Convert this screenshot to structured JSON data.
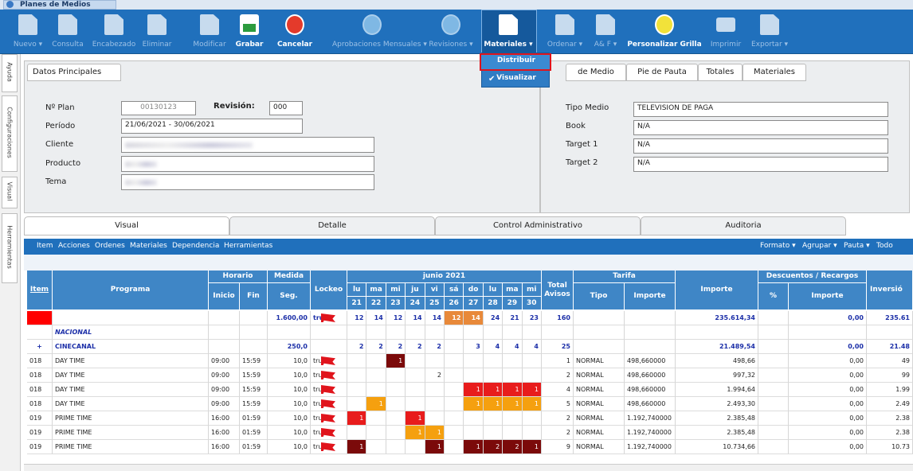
{
  "window": {
    "title": "Planes de Medios"
  },
  "toolbar": [
    {
      "label": "Nuevo ▾",
      "enabled": false
    },
    {
      "label": "Consulta",
      "enabled": false
    },
    {
      "label": "Encabezado",
      "enabled": false
    },
    {
      "label": "Eliminar",
      "enabled": false
    },
    {
      "label": "Modificar",
      "enabled": false
    },
    {
      "label": "Grabar",
      "enabled": true
    },
    {
      "label": "Cancelar",
      "enabled": true
    },
    {
      "label": "Aprobaciones Mensuales ▾",
      "enabled": false
    },
    {
      "label": "Revisiones ▾",
      "enabled": false
    },
    {
      "label": "Materiales ▾",
      "enabled": true,
      "active": true
    },
    {
      "label": "Ordenar ▾",
      "enabled": false
    },
    {
      "label": "A& F ▾",
      "enabled": false
    },
    {
      "label": "Personalizar Grilla",
      "enabled": true
    },
    {
      "label": "Imprimir",
      "enabled": false
    },
    {
      "label": "Exportar ▾",
      "enabled": false
    }
  ],
  "dropdown": [
    {
      "label": "Distribuir",
      "highlighted": true
    },
    {
      "label": "Visualizar",
      "checked": true
    }
  ],
  "side_tabs": [
    "Ayuda",
    "Configuraciones",
    "Visual",
    "Herramientas"
  ],
  "datos": {
    "tab": "Datos Principales",
    "plan_label": "Nº Plan",
    "plan": "00130123",
    "revision_label": "Revisión:",
    "revision": "000",
    "periodo_label": "Período",
    "periodo": "21/06/2021 - 30/06/2021",
    "cliente_label": "Cliente",
    "producto_label": "Producto",
    "tema_label": "Tema"
  },
  "medio": {
    "tabs": [
      "de Medio",
      "Pie de Pauta",
      "Totales",
      "Materiales"
    ],
    "fields": [
      {
        "label": "Tipo Medio",
        "value": "TELEVISION DE PAGA"
      },
      {
        "label": "Book",
        "value": "N/A"
      },
      {
        "label": "Target 1",
        "value": "N/A"
      },
      {
        "label": "Target 2",
        "value": "N/A"
      }
    ]
  },
  "main_tabs": [
    "Visual",
    "Detalle",
    "Control Administrativo",
    "Auditoria"
  ],
  "menu": [
    "Item",
    "Acciones",
    "Ordenes",
    "Materiales",
    "Dependencia",
    "Herramientas"
  ],
  "menu_right": [
    "Formato ▾",
    "Agrupar ▾",
    "Pauta ▾",
    "Todo"
  ],
  "table": {
    "header": {
      "item": "Item",
      "programa": "Programa",
      "horario": "Horario",
      "inicio": "Inicio",
      "fin": "Fin",
      "medida": "Medida",
      "seg": "Seg.",
      "lockeo": "Lockeo",
      "month": "junio 2021",
      "day_names": [
        "lu",
        "ma",
        "mi",
        "ju",
        "vi",
        "sá",
        "do",
        "lu",
        "ma",
        "mi"
      ],
      "day_numbers": [
        21,
        22,
        23,
        24,
        25,
        26,
        27,
        28,
        29,
        30
      ],
      "total": "Total Avisos",
      "tarifa": "Tarifa",
      "tipo": "Tipo",
      "tarifa_importe": "Importe",
      "importe": "Importe",
      "descuentos": "Descuentos / Recargos",
      "pct": "%",
      "desc_importe": "Importe",
      "inversion": "Inversió"
    },
    "rows": [
      {
        "item_color": "#ff0000",
        "seg": "1.600,00",
        "lockeo": true,
        "days": [
          12,
          14,
          12,
          14,
          14,
          12,
          14,
          24,
          21,
          23
        ],
        "day_colors": [
          null,
          null,
          null,
          null,
          null,
          "#e8893a",
          "#e8893a",
          null,
          null,
          null
        ],
        "total": 160,
        "importe": "235.614,34",
        "desc_importe": "0,00",
        "inversion": "235.61",
        "bold": true
      },
      {
        "programa": "NACIONAL",
        "group": true
      },
      {
        "item": "+",
        "programa": "CINECANAL",
        "seg": "250,0",
        "days": [
          2,
          2,
          2,
          2,
          2,
          null,
          3,
          4,
          4,
          4
        ],
        "total": 25,
        "importe": "21.489,54",
        "desc_importe": "0,00",
        "inversion": "21.48",
        "bold": true
      },
      {
        "item": "018",
        "programa": "DAY TIME",
        "inicio": "09:00",
        "fin": "15:59",
        "seg": "10,0",
        "lockeo": true,
        "days": [
          null,
          null,
          1,
          null,
          null,
          null,
          null,
          null,
          null,
          null
        ],
        "day_colors": [
          null,
          null,
          "#7b0a0a",
          null,
          null,
          null,
          null,
          null,
          null,
          null
        ],
        "total": 1,
        "tipo": "NORMAL",
        "tarifa": "498,660000",
        "importe": "498,66",
        "desc_importe": "0,00",
        "inversion": "49"
      },
      {
        "item": "018",
        "programa": "DAY TIME",
        "inicio": "09:00",
        "fin": "15:59",
        "seg": "10,0",
        "lockeo": true,
        "days": [
          null,
          null,
          null,
          null,
          2,
          null,
          null,
          null,
          null,
          null
        ],
        "total": 2,
        "tipo": "NORMAL",
        "tarifa": "498,660000",
        "importe": "997,32",
        "desc_importe": "0,00",
        "inversion": "99"
      },
      {
        "item": "018",
        "programa": "DAY TIME",
        "inicio": "09:00",
        "fin": "15:59",
        "seg": "10,0",
        "lockeo": true,
        "days": [
          null,
          null,
          null,
          null,
          null,
          null,
          1,
          1,
          1,
          1
        ],
        "day_colors": [
          null,
          null,
          null,
          null,
          null,
          null,
          "#e81c1c",
          "#e81c1c",
          "#e81c1c",
          "#e81c1c"
        ],
        "total": 4,
        "tipo": "NORMAL",
        "tarifa": "498,660000",
        "importe": "1.994,64",
        "desc_importe": "0,00",
        "inversion": "1.99"
      },
      {
        "item": "018",
        "programa": "DAY TIME",
        "inicio": "09:00",
        "fin": "15:59",
        "seg": "10,0",
        "lockeo": true,
        "days": [
          null,
          1,
          null,
          null,
          null,
          null,
          1,
          1,
          1,
          1
        ],
        "day_colors": [
          null,
          "#f5a00f",
          null,
          null,
          null,
          null,
          "#f5a00f",
          "#f5a00f",
          "#f5a00f",
          "#f5a00f"
        ],
        "total": 5,
        "tipo": "NORMAL",
        "tarifa": "498,660000",
        "importe": "2.493,30",
        "desc_importe": "0,00",
        "inversion": "2.49"
      },
      {
        "item": "019",
        "programa": "PRIME TIME",
        "inicio": "16:00",
        "fin": "01:59",
        "seg": "10,0",
        "lockeo": true,
        "days": [
          1,
          null,
          null,
          1,
          null,
          null,
          null,
          null,
          null,
          null
        ],
        "day_colors": [
          "#e81c1c",
          null,
          null,
          "#e81c1c",
          null,
          null,
          null,
          null,
          null,
          null
        ],
        "total": 2,
        "tipo": "NORMAL",
        "tarifa": "1.192,740000",
        "importe": "2.385,48",
        "desc_importe": "0,00",
        "inversion": "2.38"
      },
      {
        "item": "019",
        "programa": "PRIME TIME",
        "inicio": "16:00",
        "fin": "01:59",
        "seg": "10,0",
        "lockeo": true,
        "days": [
          null,
          null,
          null,
          1,
          1,
          null,
          null,
          null,
          null,
          null
        ],
        "day_colors": [
          null,
          null,
          null,
          "#f5a00f",
          "#f5a00f",
          null,
          null,
          null,
          null,
          null
        ],
        "total": 2,
        "tipo": "NORMAL",
        "tarifa": "1.192,740000",
        "importe": "2.385,48",
        "desc_importe": "0,00",
        "inversion": "2.38"
      },
      {
        "item": "019",
        "programa": "PRIME TIME",
        "inicio": "16:00",
        "fin": "01:59",
        "seg": "10,0",
        "lockeo": true,
        "days": [
          1,
          null,
          null,
          null,
          1,
          null,
          1,
          2,
          2,
          1
        ],
        "day_colors": [
          "#7b0a0a",
          null,
          null,
          null,
          "#7b0a0a",
          null,
          "#7b0a0a",
          "#7b0a0a",
          "#7b0a0a",
          "#7b0a0a"
        ],
        "total": 9,
        "tipo": "NORMAL",
        "tarifa": "1.192,740000",
        "importe": "10.734,66",
        "desc_importe": "0,00",
        "inversion": "10.73"
      }
    ]
  }
}
